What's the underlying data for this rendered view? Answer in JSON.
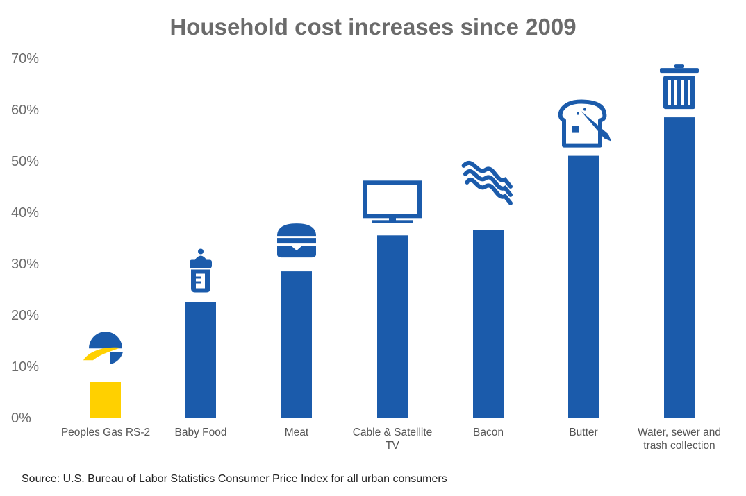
{
  "chart_data": {
    "type": "bar",
    "title": "Household cost increases since 2009",
    "categories": [
      [
        "Peoples Gas RS-2"
      ],
      [
        "Baby Food"
      ],
      [
        "Meat"
      ],
      [
        "Cable & Satellite",
        "TV"
      ],
      [
        "Bacon"
      ],
      [
        "Butter"
      ],
      [
        "Water, sewer and",
        "trash collection"
      ]
    ],
    "values": [
      7,
      22.5,
      28.5,
      35.5,
      36.5,
      51,
      58.5
    ],
    "icons": [
      "peoples-gas-logo-icon",
      "baby-bottle-icon",
      "hamburger-icon",
      "television-icon",
      "bacon-icon",
      "toast-butter-icon",
      "trash-can-icon"
    ],
    "bar_colors": [
      "#FFD000",
      "#1B5BAB",
      "#1B5BAB",
      "#1B5BAB",
      "#1B5BAB",
      "#1B5BAB",
      "#1B5BAB"
    ],
    "yticks": [
      "0%",
      "10%",
      "20%",
      "30%",
      "40%",
      "50%",
      "60%",
      "70%"
    ],
    "ylim": [
      0,
      70
    ],
    "xlabel": "",
    "ylabel": "",
    "grid": false
  },
  "source": "Source: U.S. Bureau of Labor Statistics  Consumer Price Index for all urban consumers"
}
